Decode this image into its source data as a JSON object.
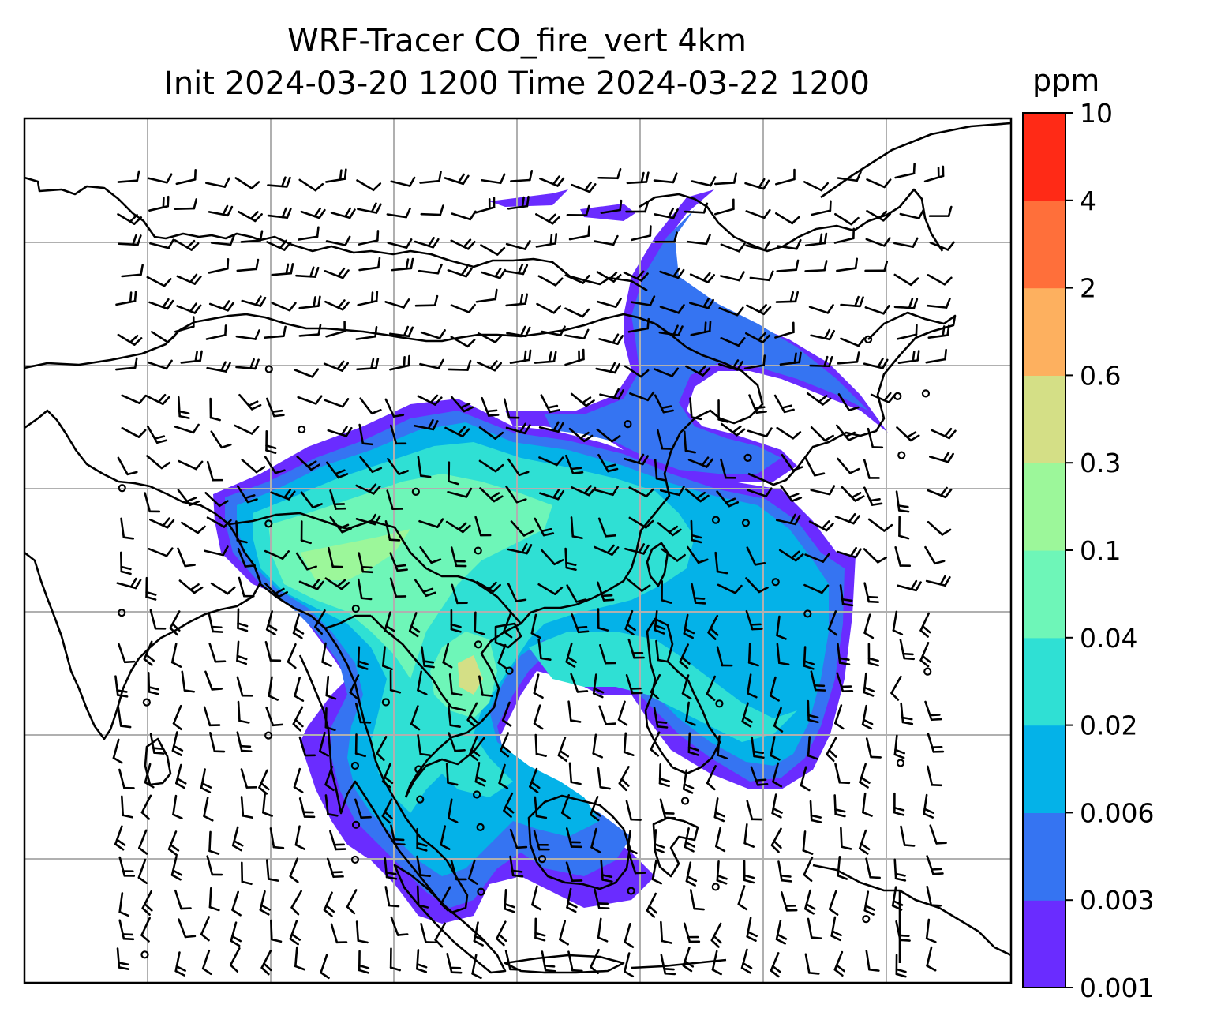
{
  "title_line1": "WRF-Tracer CO_fire_vert 4km",
  "title_line2": "Init 2024-03-20 1200 Time 2024-03-22 1200",
  "chart_data": {
    "type": "heatmap",
    "title": "WRF-Tracer CO_fire_vert 4km\nInit 2024-03-20 1200 Time 2024-03-22 1200",
    "variable": "CO_fire_vert 4km",
    "init_time": "2024-03-20 1200",
    "valid_time": "2024-03-22 1200",
    "grid": true,
    "overlays": [
      "coastlines and country borders",
      "wind barbs"
    ],
    "colorbar": {
      "units": "ppm",
      "position": "right",
      "levels": [
        0.001,
        0.003,
        0.006,
        0.02,
        0.04,
        0.1,
        0.3,
        0.6,
        2,
        4,
        10
      ],
      "tick_labels": [
        "0.001",
        "0.003",
        "0.006",
        "0.02",
        "0.04",
        "0.1",
        "0.3",
        "0.6",
        "2",
        "4",
        "10"
      ],
      "colors": [
        "#6a2cff",
        "#3574f2",
        "#04b2e8",
        "#2fe0d4",
        "#6ef6b8",
        "#9cf79a",
        "#d4df86",
        "#fdb05f",
        "#ff6f3a",
        "#ff2a16"
      ]
    }
  }
}
